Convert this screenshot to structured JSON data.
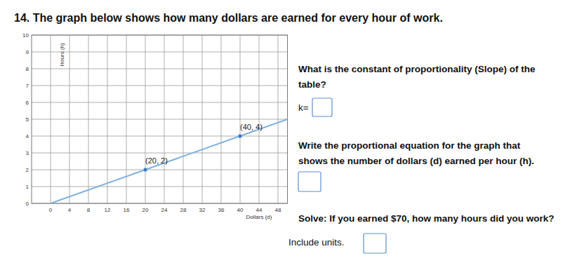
{
  "heading": "14. The graph below shows how many dollars are earned for every hour of work.",
  "prompts": [
    {
      "lines": [
        "What is the constant of proportionality (Slope) of the",
        "table?"
      ],
      "answer_prefix": "k="
    },
    {
      "lines": [
        "Write the proportional equation for the graph that",
        "shows the number of dollars (d) earned per hour (h)."
      ]
    },
    {
      "lines": [
        "Solve: If you earned $70, how many hours did you work?",
        "Include units."
      ]
    }
  ],
  "chart_data": {
    "type": "line",
    "x_label": "Dollars (d)",
    "y_label": "Hours (h)",
    "series": [
      {
        "color": "#7fb2e0",
        "x": [
          0,
          20,
          40,
          50
        ],
        "values": [
          0,
          2,
          4,
          5
        ]
      }
    ],
    "annotations": [
      {
        "x": 20,
        "y": 2,
        "text": "(20, 2)"
      },
      {
        "x": 40,
        "y": 4,
        "text": "(40, 4)"
      }
    ],
    "xlim": [
      -4,
      50
    ],
    "xticks": [
      0,
      4,
      8,
      12,
      16,
      20,
      24,
      28,
      32,
      36,
      40,
      44,
      48
    ],
    "ylim": [
      0,
      10
    ],
    "yticks": [
      0,
      1,
      2,
      3,
      4,
      5,
      6,
      7,
      8,
      9,
      10
    ],
    "grid": true
  }
}
